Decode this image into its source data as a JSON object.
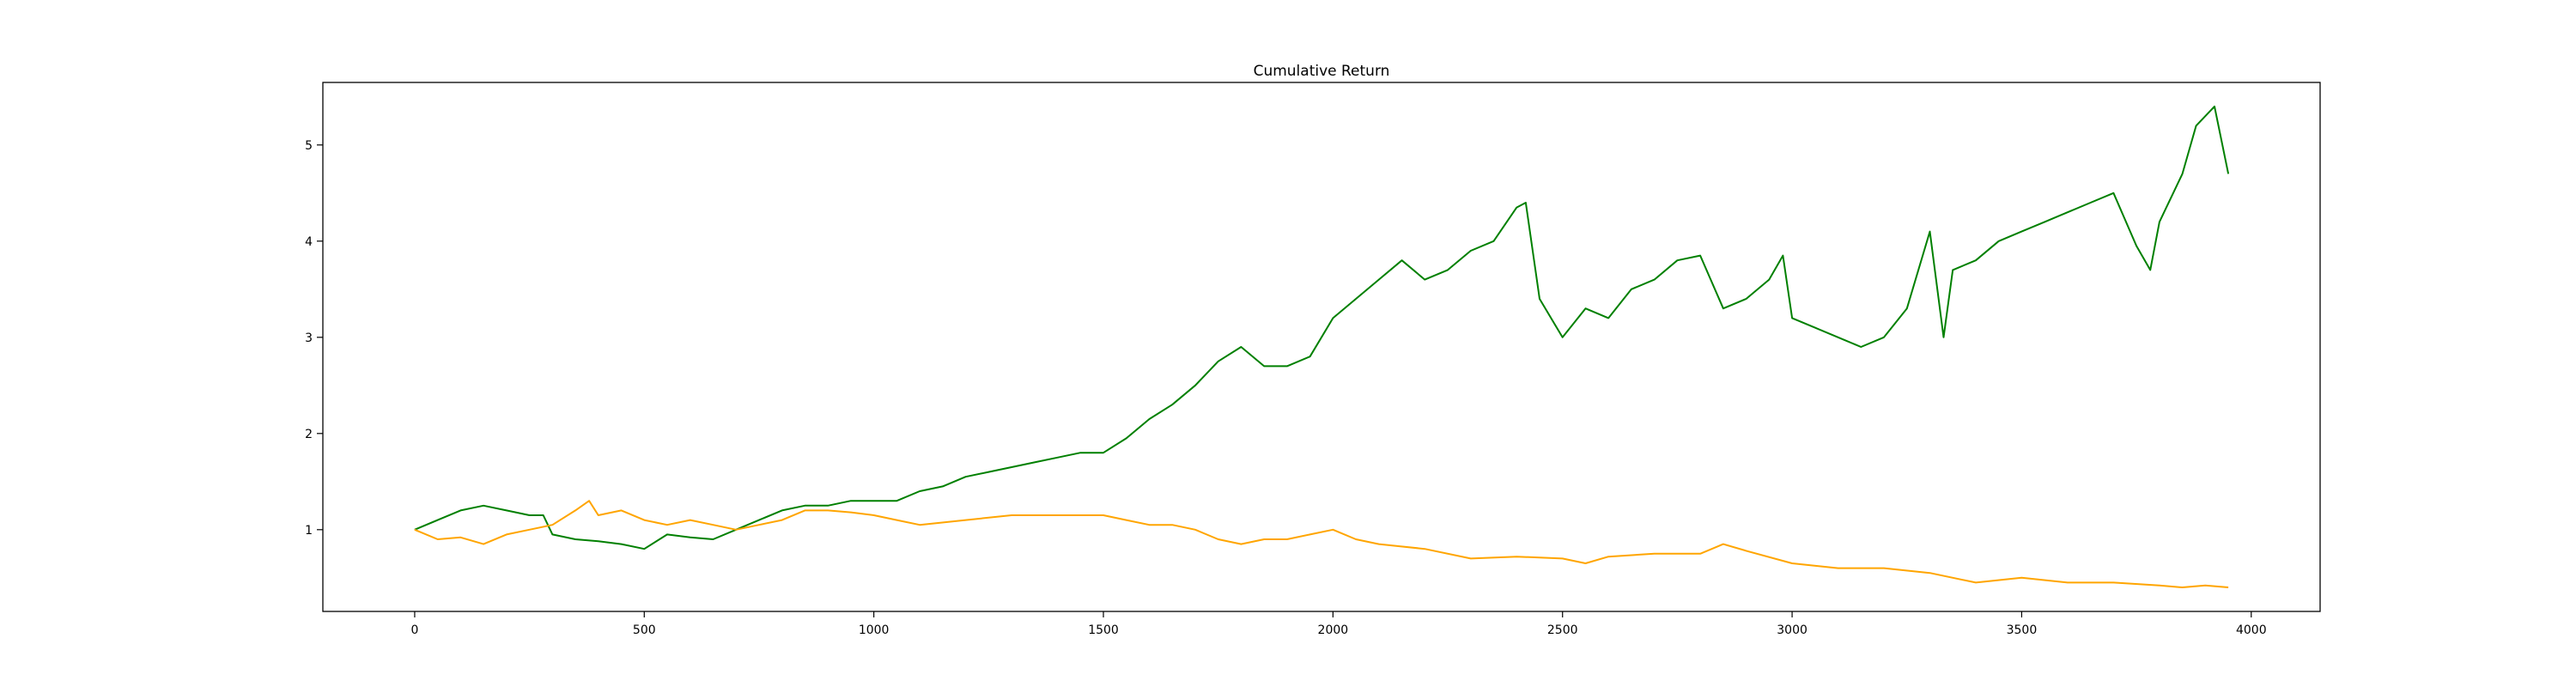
{
  "chart_data": {
    "type": "line",
    "title": "Cumulative Return",
    "xlabel": "",
    "ylabel": "",
    "xlim": [
      -200,
      4150
    ],
    "ylim": [
      0.15,
      5.65
    ],
    "x_ticks": [
      0,
      500,
      1000,
      1500,
      2000,
      2500,
      3000,
      3500,
      4000
    ],
    "y_ticks": [
      1,
      2,
      3,
      4,
      5
    ],
    "grid": false,
    "legend": "none",
    "series": [
      {
        "color": "#008000",
        "x": [
          0,
          50,
          100,
          150,
          200,
          250,
          280,
          300,
          350,
          400,
          450,
          500,
          550,
          600,
          650,
          700,
          750,
          800,
          850,
          900,
          950,
          1000,
          1050,
          1100,
          1150,
          1200,
          1250,
          1300,
          1350,
          1400,
          1450,
          1500,
          1550,
          1600,
          1650,
          1700,
          1750,
          1800,
          1850,
          1900,
          1950,
          2000,
          2050,
          2100,
          2150,
          2200,
          2250,
          2300,
          2350,
          2400,
          2420,
          2450,
          2500,
          2550,
          2600,
          2650,
          2700,
          2750,
          2800,
          2850,
          2900,
          2950,
          2980,
          3000,
          3050,
          3100,
          3150,
          3200,
          3250,
          3300,
          3330,
          3350,
          3400,
          3450,
          3500,
          3550,
          3600,
          3650,
          3700,
          3750,
          3780,
          3800,
          3850,
          3880,
          3900,
          3920,
          3950
        ],
        "values": [
          1.0,
          1.1,
          1.2,
          1.25,
          1.2,
          1.15,
          1.15,
          0.95,
          0.9,
          0.88,
          0.85,
          0.8,
          0.95,
          0.92,
          0.9,
          1.0,
          1.1,
          1.2,
          1.25,
          1.25,
          1.3,
          1.3,
          1.3,
          1.4,
          1.45,
          1.55,
          1.6,
          1.65,
          1.7,
          1.75,
          1.8,
          1.8,
          1.95,
          2.15,
          2.3,
          2.5,
          2.75,
          2.9,
          2.7,
          2.7,
          2.8,
          3.2,
          3.4,
          3.6,
          3.8,
          3.6,
          3.7,
          3.9,
          4.0,
          4.35,
          4.4,
          3.4,
          3.0,
          3.3,
          3.2,
          3.5,
          3.6,
          3.8,
          3.85,
          3.3,
          3.4,
          3.6,
          3.85,
          3.2,
          3.1,
          3.0,
          2.9,
          3.0,
          3.3,
          4.1,
          3.0,
          3.7,
          3.8,
          4.0,
          4.1,
          4.2,
          4.3,
          4.4,
          4.5,
          3.95,
          3.7,
          4.2,
          4.7,
          5.2,
          5.3,
          5.4,
          4.7
        ]
      },
      {
        "color": "#FFA500",
        "x": [
          0,
          50,
          100,
          150,
          200,
          250,
          300,
          350,
          380,
          400,
          450,
          500,
          550,
          600,
          650,
          700,
          750,
          800,
          850,
          900,
          950,
          1000,
          1050,
          1100,
          1200,
          1300,
          1400,
          1500,
          1550,
          1600,
          1650,
          1700,
          1750,
          1800,
          1850,
          1900,
          1950,
          2000,
          2050,
          2100,
          2200,
          2300,
          2400,
          2500,
          2550,
          2600,
          2700,
          2800,
          2850,
          2900,
          3000,
          3100,
          3200,
          3300,
          3400,
          3500,
          3600,
          3700,
          3800,
          3850,
          3900,
          3950
        ],
        "values": [
          1.0,
          0.9,
          0.92,
          0.85,
          0.95,
          1.0,
          1.05,
          1.2,
          1.3,
          1.15,
          1.2,
          1.1,
          1.05,
          1.1,
          1.05,
          1.0,
          1.05,
          1.1,
          1.2,
          1.2,
          1.18,
          1.15,
          1.1,
          1.05,
          1.1,
          1.15,
          1.15,
          1.15,
          1.1,
          1.05,
          1.05,
          1.0,
          0.9,
          0.85,
          0.9,
          0.9,
          0.95,
          1.0,
          0.9,
          0.85,
          0.8,
          0.7,
          0.72,
          0.7,
          0.65,
          0.72,
          0.75,
          0.75,
          0.85,
          0.78,
          0.65,
          0.6,
          0.6,
          0.55,
          0.45,
          0.5,
          0.45,
          0.45,
          0.42,
          0.4,
          0.42,
          0.4
        ]
      }
    ]
  }
}
